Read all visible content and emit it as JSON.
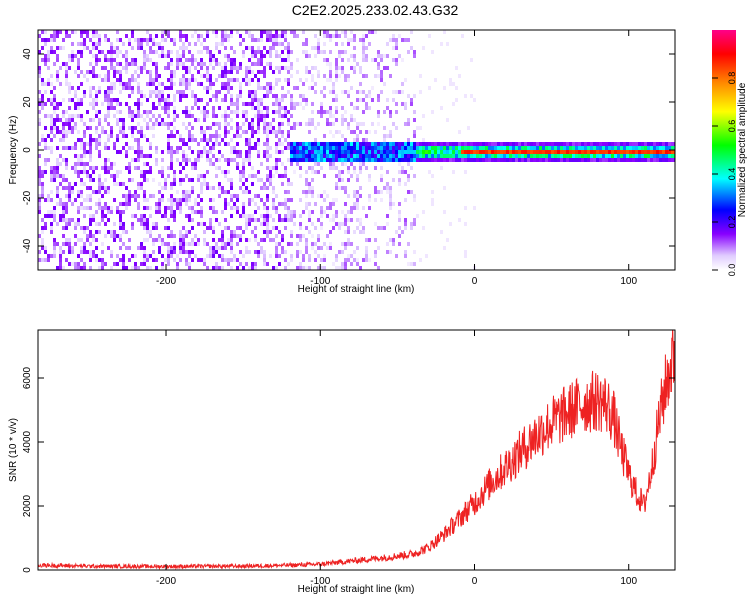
{
  "title": "C2E2.2025.233.02.43.G32",
  "colors": {
    "snr_line": "#ee2222",
    "axis": "#000000",
    "background": "#ffffff"
  },
  "chart_data": [
    {
      "type": "heatmap",
      "xlabel": "Height of straight line (km)",
      "ylabel": "Frequency (Hz)",
      "xlim": [
        -283,
        130
      ],
      "ylim": [
        -50,
        50
      ],
      "xticks": [
        -200,
        -100,
        0,
        100
      ],
      "yticks": [
        -40,
        -20,
        0,
        20,
        40
      ],
      "colorbar": {
        "label": "Normalized spectral amplitude",
        "range": [
          0,
          1
        ],
        "ticks": [
          "0.0",
          "0.2",
          "0.4",
          "0.6",
          "0.8"
        ],
        "colormap": [
          "#ffffff",
          "#e0ccff",
          "#8800ff",
          "#0000ff",
          "#00ffff",
          "#00ff00",
          "#ffff00",
          "#ff8800",
          "#ff0000",
          "#ff0088"
        ]
      },
      "regions": [
        {
          "x_from": -283,
          "x_to": -120,
          "description": "broadband noise",
          "amplitude": 0.15
        },
        {
          "x_from": -120,
          "x_to": -38,
          "description": "noise with strengthening line near 0 Hz",
          "amplitude": 0.2
        },
        {
          "x_from": -38,
          "x_to": 130,
          "description": "narrow line near 0 Hz",
          "amplitude": 0.9
        }
      ]
    },
    {
      "type": "line",
      "xlabel": "Height of straight line (km)",
      "ylabel": "SNR (10 * v/v)",
      "xlim": [
        -283,
        130
      ],
      "ylim": [
        0,
        7500
      ],
      "xticks": [
        -200,
        -100,
        0,
        100
      ],
      "yticks": [
        0,
        2000,
        4000,
        6000
      ],
      "grid": false,
      "series": [
        {
          "x": [
            -283,
            -250,
            -200,
            -150,
            -120,
            -100,
            -80,
            -60,
            -40,
            -30,
            -20,
            -10,
            0,
            10,
            20,
            30,
            40,
            50,
            60,
            70,
            80,
            85,
            90,
            95,
            100,
            105,
            110,
            115,
            120,
            125,
            130
          ],
          "y": [
            150,
            120,
            110,
            120,
            150,
            180,
            280,
            380,
            500,
            700,
            1100,
            1600,
            2100,
            2700,
            3200,
            3700,
            4200,
            4600,
            4900,
            5200,
            5300,
            5200,
            4800,
            3800,
            3000,
            2400,
            2000,
            3200,
            4800,
            6000,
            6800
          ]
        }
      ]
    }
  ]
}
